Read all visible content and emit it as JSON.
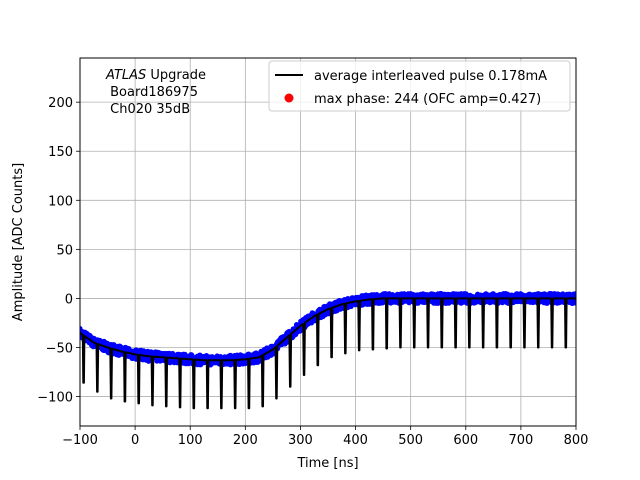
{
  "chart_data": {
    "type": "line",
    "title": "",
    "xlabel": "Time [ns]",
    "ylabel": "Amplitude [ADC Counts]",
    "xlim": [
      -100,
      800
    ],
    "ylim": [
      -130,
      245
    ],
    "xticks": [
      -100,
      0,
      100,
      200,
      300,
      400,
      500,
      600,
      700,
      800
    ],
    "xtick_labels": [
      "−100",
      "0",
      "100",
      "200",
      "300",
      "400",
      "500",
      "600",
      "700",
      "800"
    ],
    "yticks": [
      -100,
      -50,
      0,
      50,
      100,
      150,
      200
    ],
    "ytick_labels": [
      "−100",
      "−50",
      "0",
      "50",
      "100",
      "150",
      "200"
    ],
    "grid": true,
    "annotation": {
      "line1_italic": "ATLAS",
      "line1_rest": " Upgrade",
      "line2": " Board186975",
      "line3": " Ch020 35dB"
    },
    "legend": {
      "position": "top-right",
      "entries": [
        {
          "label": "average interleaved pulse 0.178mA",
          "marker": "line",
          "color": "#000000"
        },
        {
          "label": "max phase: 244 (OFC amp=0.427)",
          "marker": "dot",
          "color": "#ff0000"
        }
      ]
    },
    "series": [
      {
        "name": "average interleaved pulse 0.178mA",
        "color": "#000000",
        "baseline_x": [
          -100,
          -75,
          -50,
          -25,
          0,
          25,
          50,
          75,
          100,
          125,
          150,
          175,
          200,
          225,
          250,
          275,
          300,
          325,
          350,
          375,
          400,
          425,
          450,
          475,
          500,
          550,
          600,
          650,
          700,
          750,
          800
        ],
        "baseline_y": [
          -35,
          -45,
          -50,
          -54,
          -57,
          -59,
          -60,
          -61,
          -62,
          -63,
          -63,
          -63,
          -62,
          -60,
          -52,
          -40,
          -28,
          -18,
          -11,
          -6,
          -3,
          -1,
          0,
          0,
          0,
          0,
          0,
          0,
          0,
          0,
          0
        ],
        "spike_x": [
          -95,
          -70,
          -45,
          -20,
          5,
          30,
          55,
          80,
          105,
          130,
          155,
          180,
          205,
          230,
          255,
          280,
          305,
          330,
          355,
          380,
          405,
          430,
          455,
          480,
          505,
          530,
          555,
          580,
          605,
          630,
          655,
          680,
          705,
          730,
          755,
          780
        ],
        "spike_min_y": [
          -86,
          -95,
          -102,
          -105,
          -107,
          -109,
          -110,
          -111,
          -112,
          -112,
          -112,
          -112,
          -112,
          -110,
          -102,
          -90,
          -78,
          -68,
          -60,
          -56,
          -53,
          -52,
          -51,
          -50,
          -50,
          -50,
          -50,
          -50,
          -50,
          -50,
          -50,
          -50,
          -50,
          -50,
          -50,
          -50
        ]
      },
      {
        "name": "samples",
        "color": "#0000ff",
        "spread": 5
      }
    ]
  }
}
